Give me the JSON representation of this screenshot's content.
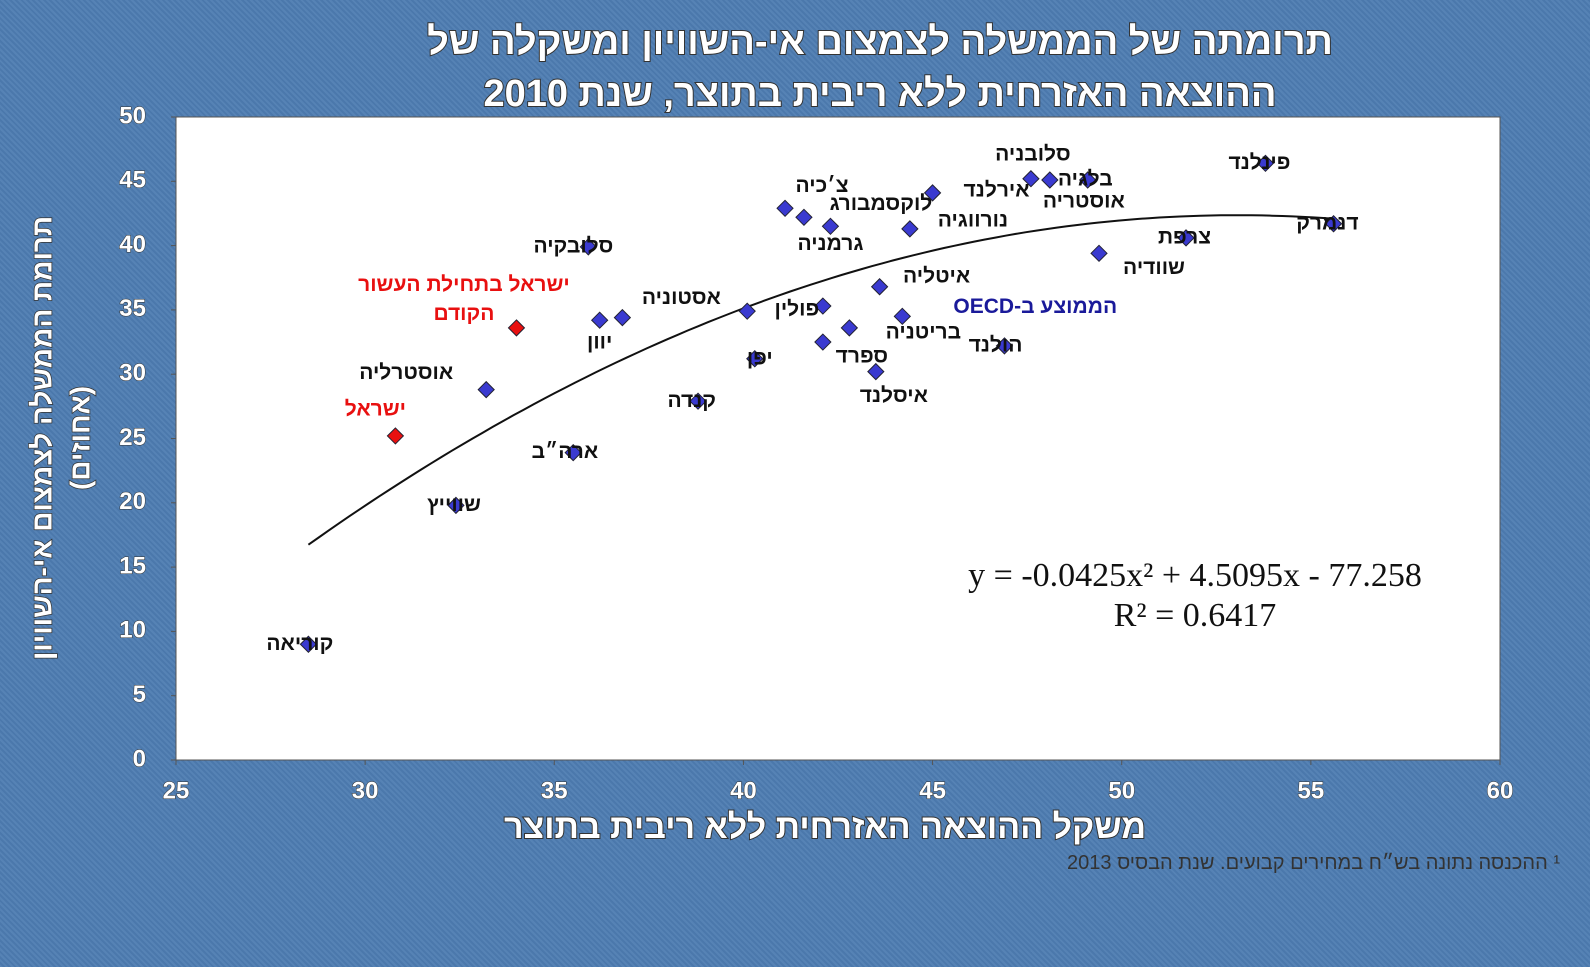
{
  "chart_data": {
    "type": "scatter",
    "title": [
      "תרומתה של הממשלה לצמצום אי-השוויון ומשקלה של",
      "ההוצאה האזרחית ללא ריבית בתוצר, שנת 2010"
    ],
    "y_label": [
      "תרומת הממשלה לצמצום אי-השוויון",
      "(אחוזים)"
    ],
    "x_label": "משקל ההוצאה האזרחית ללא ריבית בתוצר",
    "xlim": [
      25,
      60
    ],
    "xticks": [
      25,
      30,
      35,
      40,
      45,
      50,
      55,
      60
    ],
    "ylim": [
      0,
      50
    ],
    "yticks": [
      0,
      5,
      10,
      15,
      20,
      25,
      30,
      35,
      40,
      45,
      50
    ],
    "series": [
      {
        "color": "#3a3ad0",
        "labels": [
          "קוריאה",
          "שווייץ",
          "אוסטרליה",
          "ארה״ב",
          "סלובקיה",
          "יוון",
          "אסטוניה",
          null,
          "קנדה",
          "יפן",
          "פולין",
          "ספרד",
          "בריטניה",
          "איסלנד",
          "איטליה",
          "הממוצע ב-OECD",
          "צ׳כיה",
          "לוקסמבורג",
          "גרמניה",
          "אירלנד",
          "נורווגיה",
          "סלובניה",
          "אוסטריה",
          "בלגיה",
          "שוודיה",
          "הולנד",
          "צרפת",
          "פינלנד",
          "דנמרק"
        ],
        "x": [
          28.5,
          32.4,
          33.2,
          35.5,
          35.9,
          36.2,
          36.8,
          40.1,
          38.8,
          40.3,
          42.1,
          42.1,
          42.8,
          43.5,
          43.6,
          44.2,
          41.1,
          41.6,
          42.3,
          45.0,
          44.4,
          47.6,
          48.1,
          49.1,
          49.4,
          46.9,
          51.7,
          53.8,
          55.6
        ],
        "values": [
          9.0,
          19.8,
          28.8,
          23.9,
          39.9,
          34.2,
          34.4,
          34.9,
          27.9,
          31.2,
          35.3,
          32.5,
          33.6,
          30.2,
          36.8,
          34.5,
          42.9,
          42.2,
          41.5,
          44.1,
          41.3,
          45.2,
          45.1,
          45.1,
          39.4,
          32.2,
          40.6,
          46.4,
          41.7
        ]
      },
      {
        "color": "#e81010",
        "labels": [
          "ישראל",
          "ישראל בתחילת העשור הקודם"
        ],
        "x": [
          30.8,
          34.0
        ],
        "values": [
          25.2,
          33.6
        ]
      }
    ],
    "trendline": {
      "coefficients": [
        -0.0425,
        4.5095,
        -77.258
      ],
      "xrange": [
        28.5,
        55.6
      ],
      "equation": "y = -0.0425x² + 4.5095x - 77.258",
      "r_squared": "R² = 0.6417"
    },
    "footnote": "¹ ההכנסה נתונה בש״ח במחירים קבועים. שנת הבסיס 2013"
  }
}
